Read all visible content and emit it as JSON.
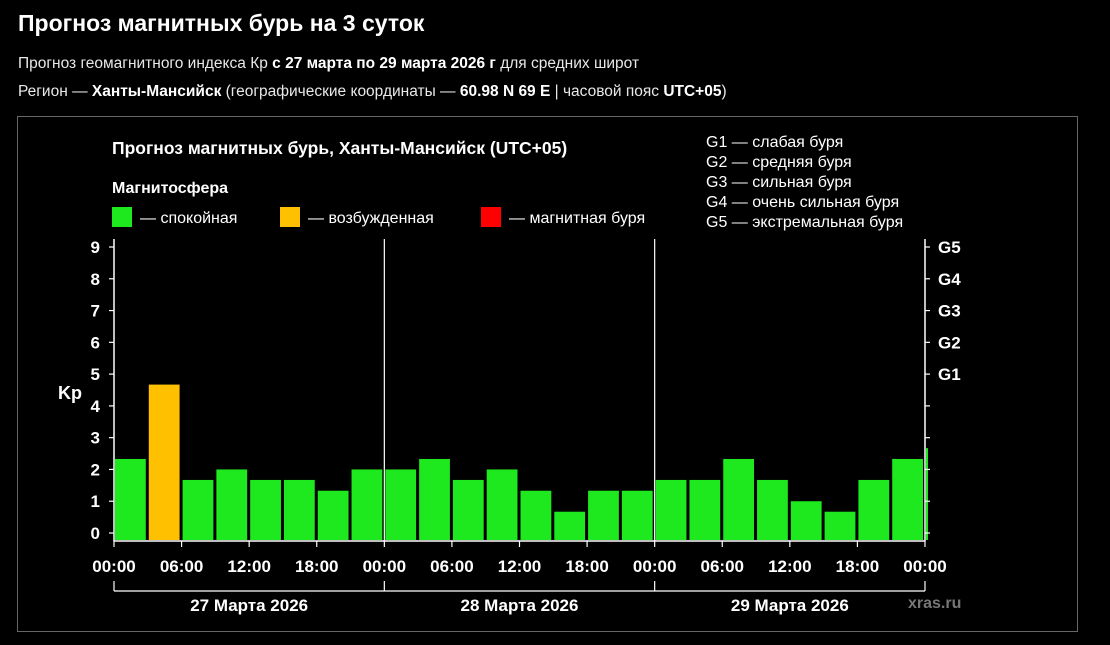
{
  "page": {
    "title": "Прогноз магнитных бурь на 3 суток",
    "sub1": {
      "p1": "Прогноз геомагнитного индекса Кр ",
      "b1": "с 27 марта по 29 марта 2026 г",
      "p2": " для средних широт"
    },
    "sub2": {
      "p1": "Регион — ",
      "b1": "Ханты-Мансийск",
      "p2": " (географические координаты — ",
      "b2": "60.98 N 69 E",
      "p3": " | часовой пояс ",
      "b3": "UTC+05",
      "p4": ")"
    }
  },
  "chart_data": {
    "type": "bar",
    "title": "Прогноз магнитных бурь, Ханты-Мансийск (UTC+05)",
    "ylabel": "Kp",
    "ylim": [
      0,
      9
    ],
    "yticks": [
      "0",
      "1",
      "2",
      "3",
      "4",
      "5",
      "6",
      "7",
      "8",
      "9"
    ],
    "right_axis": [
      {
        "kp": 5,
        "label": "G1"
      },
      {
        "kp": 6,
        "label": "G2"
      },
      {
        "kp": 7,
        "label": "G3"
      },
      {
        "kp": 8,
        "label": "G4"
      },
      {
        "kp": 9,
        "label": "G5"
      }
    ],
    "legend_title": "Магнитосфера",
    "legend": [
      {
        "label": "— спокойная",
        "color": "#1ee81e"
      },
      {
        "label": "— возбужденная",
        "color": "#ffc000"
      },
      {
        "label": "— магнитная буря",
        "color": "#ff0000"
      }
    ],
    "storm_legend": [
      "G1 — слабая буря",
      "G2 — средняя буря",
      "G3 — сильная буря",
      "G4 — очень сильная буря",
      "G5 — экстремальная буря"
    ],
    "colors": {
      "quiet": "#1ee81e",
      "active": "#ffc000",
      "storm": "#ff0000"
    },
    "x_tick_labels": [
      "00:00",
      "06:00",
      "12:00",
      "18:00",
      "00:00",
      "06:00",
      "12:00",
      "18:00",
      "00:00",
      "06:00",
      "12:00",
      "18:00",
      "00:00"
    ],
    "days": [
      "27 Марта 2026",
      "28 Марта 2026",
      "29 Марта 2026"
    ],
    "interval_hours": 3,
    "values": [
      2.33,
      4.67,
      1.67,
      2,
      1.67,
      1.67,
      1.33,
      2,
      2,
      2.33,
      1.67,
      2,
      1.33,
      0.67,
      1.33,
      1.33,
      1.67,
      1.67,
      2.33,
      1.67,
      1,
      0.67,
      1.67,
      2.33,
      2.67
    ],
    "bar_levels": [
      "quiet",
      "active",
      "quiet",
      "quiet",
      "quiet",
      "quiet",
      "quiet",
      "quiet",
      "quiet",
      "quiet",
      "quiet",
      "quiet",
      "quiet",
      "quiet",
      "quiet",
      "quiet",
      "quiet",
      "quiet",
      "quiet",
      "quiet",
      "quiet",
      "quiet",
      "quiet",
      "quiet",
      "quiet"
    ],
    "watermark": "xras.ru"
  }
}
